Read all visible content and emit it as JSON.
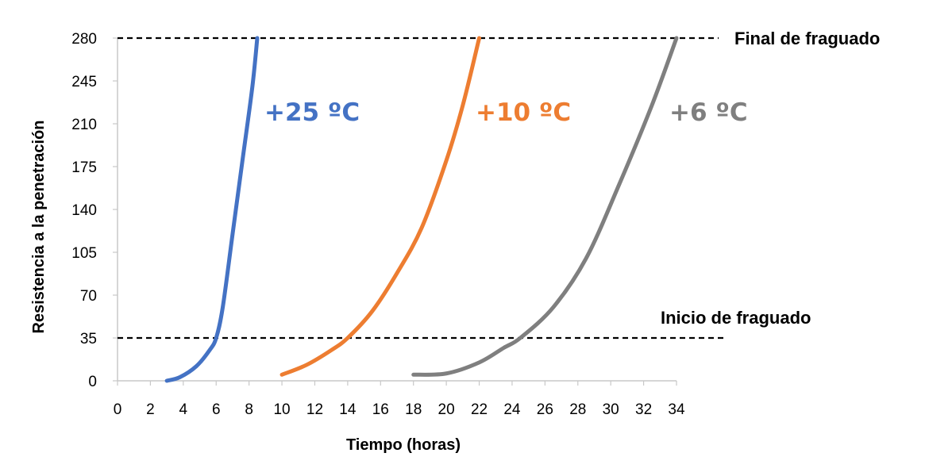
{
  "chart_data": {
    "type": "line",
    "title": "",
    "xlabel": "Tiempo (horas)",
    "ylabel": "Resistencia a la penetración",
    "xlim": [
      0,
      34
    ],
    "ylim": [
      0,
      280
    ],
    "x_ticks": [
      "0",
      "2",
      "4",
      "6",
      "8",
      "10",
      "12",
      "14",
      "16",
      "18",
      "20",
      "22",
      "24",
      "26",
      "28",
      "30",
      "32",
      "34"
    ],
    "y_ticks": [
      "0",
      "35",
      "70",
      "105",
      "140",
      "175",
      "210",
      "245",
      "280"
    ],
    "grid": false,
    "reference_lines": [
      {
        "label": "Final de fraguado",
        "y": 280,
        "style": "dashed"
      },
      {
        "label": "Inicio de fraguado",
        "y": 35,
        "style": "dashed"
      }
    ],
    "series": [
      {
        "name": "+25 ºC",
        "color": "#4472C4",
        "x": [
          3.0,
          3.8,
          4.8,
          5.6,
          6.0,
          6.4,
          7.0,
          7.6,
          8.2,
          8.5
        ],
        "y": [
          0,
          3,
          12,
          25,
          35,
          60,
          120,
          180,
          240,
          280
        ]
      },
      {
        "name": "+10 ºC",
        "color": "#ED7D31",
        "x": [
          10.0,
          11.5,
          13.0,
          14.0,
          15.5,
          17.0,
          18.5,
          20.0,
          21.0,
          22.0
        ],
        "y": [
          5,
          13,
          25,
          35,
          57,
          88,
          125,
          180,
          225,
          280
        ]
      },
      {
        "name": "+6 ºC",
        "color": "#7F7F7F",
        "x": [
          18.0,
          20.0,
          22.0,
          23.5,
          24.5,
          26.5,
          28.5,
          30.5,
          32.5,
          34.0
        ],
        "y": [
          5,
          6,
          15,
          27,
          35,
          60,
          100,
          160,
          225,
          280
        ]
      }
    ]
  }
}
